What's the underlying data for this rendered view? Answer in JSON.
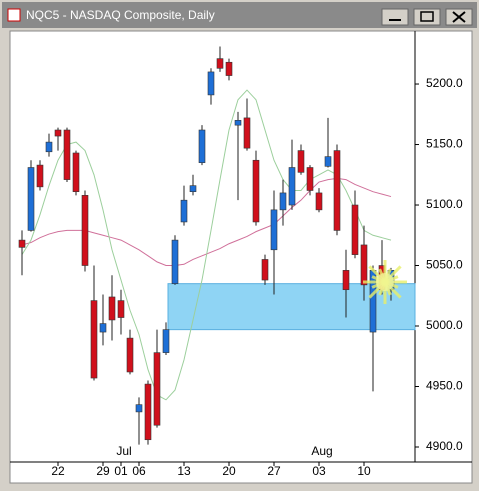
{
  "window_title": "NQC5 - NASDAQ Composite, Daily",
  "chart_data": {
    "type": "candlestick",
    "categories": [
      null,
      null,
      null,
      null,
      "22",
      null,
      null,
      null,
      null,
      "29",
      null,
      "01",
      null,
      "06",
      null,
      null,
      null,
      null,
      "13",
      null,
      null,
      null,
      null,
      "20",
      null,
      null,
      null,
      null,
      "27",
      null,
      null,
      null,
      null,
      "03",
      null,
      null,
      null,
      null,
      "10",
      null,
      null,
      null
    ],
    "months": [
      {
        "label": "Jul",
        "start": "01"
      },
      {
        "label": "Aug",
        "start": "03"
      }
    ],
    "open": [
      5071,
      5079,
      5133,
      5144,
      5162,
      5162,
      5143,
      5108,
      5021,
      4995,
      5024,
      5021,
      4990,
      4929,
      4952,
      4978,
      4978,
      5035,
      5086,
      5111,
      5135,
      5191,
      5221,
      5218,
      5166,
      5172,
      5137,
      5055,
      5063,
      5096,
      5100,
      5145,
      5131,
      5110,
      5132,
      5145,
      5046,
      5100,
      5067,
      4995,
      5050,
      5030
    ],
    "high": [
      5079,
      5137,
      5137,
      5159,
      5164,
      5164,
      5145,
      5112,
      5050,
      5026,
      5042,
      5030,
      4997,
      4941,
      4955,
      4997,
      5003,
      5075,
      5116,
      5125,
      5166,
      5213,
      5231,
      5221,
      5177,
      5188,
      5145,
      5059,
      5112,
      5121,
      5154,
      5150,
      5133,
      5114,
      5172,
      5150,
      5063,
      5112,
      5083,
      5050,
      5071,
      5048
    ],
    "low": [
      5042,
      5078,
      5112,
      5140,
      5145,
      5119,
      5108,
      5045,
      4955,
      4984,
      4988,
      4993,
      4960,
      4902,
      4902,
      4916,
      4976,
      5034,
      5083,
      5108,
      5133,
      5183,
      5210,
      5203,
      5104,
      5145,
      5083,
      5034,
      5026,
      5083,
      5096,
      5125,
      5108,
      5094,
      5131,
      5075,
      5007,
      5056,
      5021,
      4946,
      5026,
      5021
    ],
    "close": [
      5065,
      5131,
      5115,
      5152,
      5157,
      5121,
      5111,
      5050,
      4957,
      5002,
      5005,
      5007,
      4962,
      4935,
      4906,
      4918,
      4997,
      5071,
      5104,
      5116,
      5162,
      5210,
      5213,
      5207,
      5170,
      5147,
      5086,
      5038,
      5096,
      5110,
      5131,
      5127,
      5112,
      5096,
      5140,
      5079,
      5030,
      5059,
      5034,
      5046,
      5030,
      5046
    ],
    "up_color": "#1e6fd6",
    "down_color": "#d0101c",
    "overlays": [
      {
        "color": "#d0709a",
        "values": [
          5067,
          5069,
          5073,
          5076,
          5078,
          5079,
          5079,
          5079,
          5077,
          5075,
          5073,
          5071,
          5067,
          5063,
          5058,
          5053,
          5050,
          5050,
          5051,
          5055,
          5058,
          5061,
          5064,
          5068,
          5071,
          5074,
          5078,
          5081,
          5084,
          5091,
          5098,
          5104,
          5112,
          5119,
          5121,
          5122,
          5121,
          5117,
          5114,
          5111,
          5109,
          5107
        ]
      },
      {
        "color": "#9ccf9c",
        "values": [
          5059,
          5071,
          5092,
          5116,
          5137,
          5150,
          5152,
          5145,
          5125,
          5096,
          5063,
          5038,
          5013,
          4993,
          4964,
          4943,
          4939,
          4947,
          4972,
          5005,
          5038,
          5079,
          5121,
          5162,
          5187,
          5195,
          5187,
          5162,
          5137,
          5121,
          5112,
          5112,
          5121,
          5125,
          5129,
          5125,
          5112,
          5096,
          5079,
          5075,
          5073,
          5071
        ]
      }
    ],
    "zone": {
      "from": 4997,
      "to": 5035,
      "color": "#8fd4f4"
    },
    "ylim": [
      4887.6,
      5243
    ],
    "yticks": [
      {
        "value": 4900,
        "label": "4900.0"
      },
      {
        "value": 4950,
        "label": "4950.0"
      },
      {
        "value": 5000,
        "label": "5000.0"
      },
      {
        "value": 5050,
        "label": "5050.0"
      },
      {
        "value": 5100,
        "label": "5100.0"
      },
      {
        "value": 5150,
        "label": "5150.0"
      },
      {
        "value": 5200,
        "label": "5200.0"
      }
    ]
  }
}
